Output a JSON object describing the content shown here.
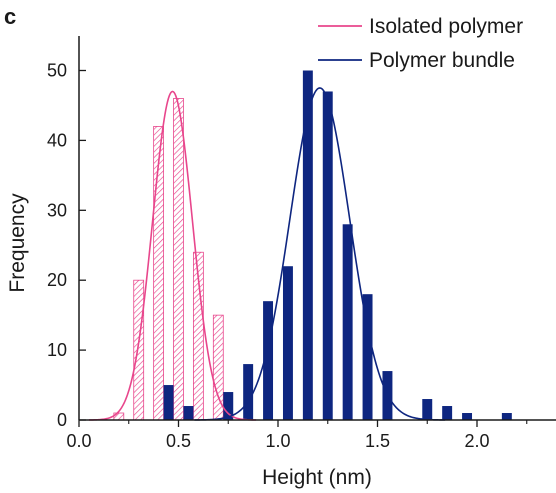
{
  "panel_label": "c",
  "chart_data": {
    "type": "bar",
    "xlabel": "Height (nm)",
    "ylabel": "Frequency",
    "xlim": [
      0,
      2.4
    ],
    "ylim": [
      0,
      53
    ],
    "xticks": [
      "0.0",
      "0.5",
      "1.0",
      "1.5",
      "2.0"
    ],
    "yticks": [
      "0",
      "10",
      "20",
      "30",
      "40",
      "50"
    ],
    "bin_width": 0.1,
    "legend_placement": "top-right",
    "grid": false,
    "series": [
      {
        "name": "Isolated polymer",
        "color": "#e8468c",
        "style": "hatched",
        "bins": [
          {
            "x": 0.2,
            "y": 1
          },
          {
            "x": 0.3,
            "y": 20
          },
          {
            "x": 0.4,
            "y": 42
          },
          {
            "x": 0.5,
            "y": 46
          },
          {
            "x": 0.6,
            "y": 24
          },
          {
            "x": 0.7,
            "y": 15
          }
        ],
        "fit": {
          "type": "gaussian",
          "mean": 0.47,
          "sd": 0.1,
          "peak": 47
        }
      },
      {
        "name": "Polymer bundle",
        "color": "#0e2680",
        "style": "solid",
        "bins": [
          {
            "x": 0.45,
            "y": 5
          },
          {
            "x": 0.55,
            "y": 2
          },
          {
            "x": 0.75,
            "y": 4
          },
          {
            "x": 0.85,
            "y": 8
          },
          {
            "x": 0.95,
            "y": 17
          },
          {
            "x": 1.05,
            "y": 22
          },
          {
            "x": 1.15,
            "y": 50
          },
          {
            "x": 1.25,
            "y": 47
          },
          {
            "x": 1.35,
            "y": 28
          },
          {
            "x": 1.45,
            "y": 18
          },
          {
            "x": 1.55,
            "y": 7
          },
          {
            "x": 1.75,
            "y": 3
          },
          {
            "x": 1.85,
            "y": 2
          },
          {
            "x": 1.95,
            "y": 1
          },
          {
            "x": 2.15,
            "y": 1
          }
        ],
        "fit": {
          "type": "gaussian",
          "mean": 1.21,
          "sd": 0.15,
          "peak": 47.5
        }
      }
    ]
  }
}
